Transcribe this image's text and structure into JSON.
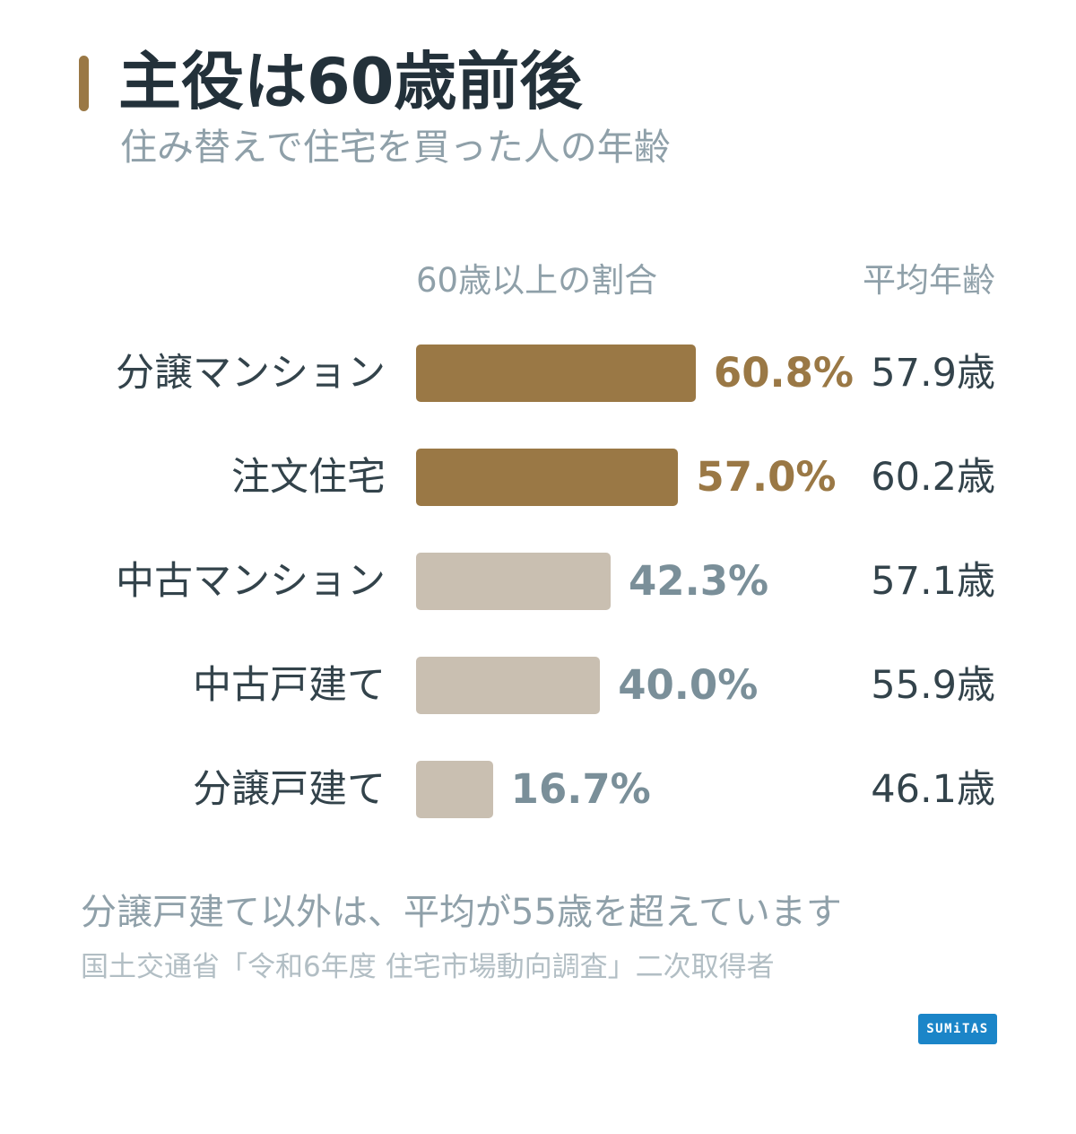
{
  "header": {
    "title": "主役は60歳前後",
    "subtitle": "住み替えで住宅を買った人の年齢"
  },
  "columns": {
    "share": "60歳以上の割合",
    "avg_age": "平均年齢"
  },
  "chart_data": {
    "type": "bar",
    "orientation": "horizontal",
    "title": "主役は60歳前後",
    "subtitle": "住み替えで住宅を買った人の年齢",
    "categories": [
      "分譲マンション",
      "注文住宅",
      "中古マンション",
      "中古戸建て",
      "分譲戸建て"
    ],
    "series": [
      {
        "name": "60歳以上の割合",
        "values": [
          60.8,
          57.0,
          42.3,
          40.0,
          16.7
        ],
        "labels": [
          "60.8%",
          "57.0%",
          "42.3%",
          "40.0%",
          "16.7%"
        ]
      },
      {
        "name": "平均年齢",
        "values": [
          57.9,
          60.2,
          57.1,
          55.9,
          46.1
        ],
        "labels": [
          "57.9歳",
          "60.2歳",
          "57.1歳",
          "55.9歳",
          "46.1歳"
        ]
      }
    ],
    "highlighted": [
      true,
      true,
      false,
      false,
      false
    ],
    "colors": {
      "highlight_bar": "#9a7845",
      "normal_bar": "#c9bfb1",
      "highlight_label": "#9a7845",
      "normal_label": "#7a8f99"
    },
    "xlim": [
      0,
      100
    ],
    "grid": false
  },
  "footer": {
    "note": "分譲戸建て以外は、平均が55歳を超えています",
    "source": "国土交通省「令和6年度 住宅市場動向調査」二次取得者",
    "logo": "SUMiTAS"
  }
}
